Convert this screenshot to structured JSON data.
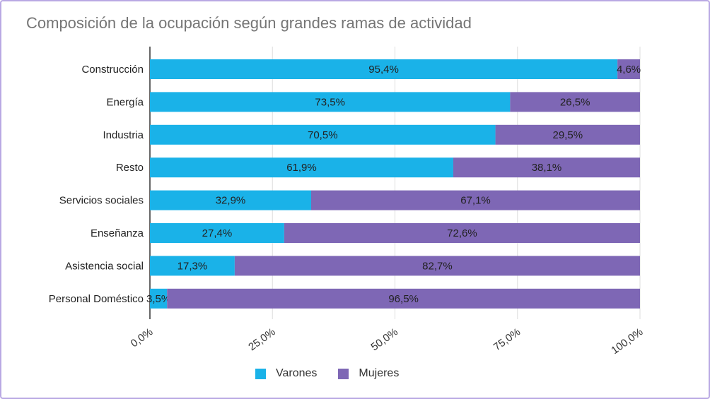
{
  "chart_data": {
    "type": "bar",
    "orientation": "horizontal",
    "stacked": true,
    "title": "Composición de la ocupación según grandes ramas de actividad",
    "categories": [
      "Construcción",
      "Energía",
      "Industria",
      "Resto",
      "Servicios sociales",
      "Enseñanza",
      "Asistencia social",
      "Personal Doméstico"
    ],
    "series": [
      {
        "name": "Varones",
        "color": "#1ab2e8",
        "values": [
          95.4,
          73.5,
          70.5,
          61.9,
          32.9,
          27.4,
          17.3,
          3.5
        ],
        "labels": [
          "95,4%",
          "73,5%",
          "70,5%",
          "61,9%",
          "32,9%",
          "27,4%",
          "17,3%",
          "3,5%"
        ]
      },
      {
        "name": "Mujeres",
        "color": "#7e67b5",
        "values": [
          4.6,
          26.5,
          29.5,
          38.1,
          67.1,
          72.6,
          82.7,
          96.5
        ],
        "labels": [
          "4,6%",
          "26,5%",
          "29,5%",
          "38,1%",
          "67,1%",
          "72,6%",
          "82,7%",
          "96,5%"
        ]
      }
    ],
    "xlim": [
      0,
      100
    ],
    "xticks": [
      "0,0%",
      "25,0%",
      "50,0%",
      "75,0%",
      "100,0%"
    ],
    "grid": true,
    "legend": "bottom"
  }
}
